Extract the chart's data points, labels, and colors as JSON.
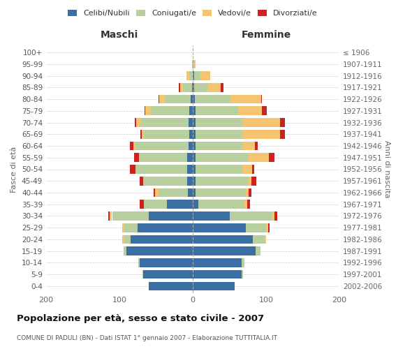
{
  "age_groups": [
    "100+",
    "95-99",
    "90-94",
    "85-89",
    "80-84",
    "75-79",
    "70-74",
    "65-69",
    "60-64",
    "55-59",
    "50-54",
    "45-49",
    "40-44",
    "35-39",
    "30-34",
    "25-29",
    "20-24",
    "15-19",
    "10-14",
    "5-9",
    "0-4"
  ],
  "birth_years": [
    "≤ 1906",
    "1907-1911",
    "1912-1916",
    "1917-1921",
    "1922-1926",
    "1927-1931",
    "1932-1936",
    "1937-1941",
    "1942-1946",
    "1947-1951",
    "1952-1956",
    "1957-1961",
    "1962-1966",
    "1967-1971",
    "1972-1976",
    "1977-1981",
    "1982-1986",
    "1987-1991",
    "1992-1996",
    "1997-2001",
    "2002-2006"
  ],
  "male": {
    "celibi": [
      0,
      0,
      0,
      1,
      3,
      5,
      6,
      5,
      6,
      8,
      8,
      8,
      7,
      35,
      60,
      75,
      85,
      90,
      72,
      68,
      60
    ],
    "coniugati": [
      0,
      1,
      5,
      12,
      35,
      52,
      65,
      62,
      72,
      65,
      70,
      60,
      40,
      32,
      50,
      18,
      8,
      4,
      2,
      1,
      0
    ],
    "vedovi": [
      0,
      0,
      4,
      4,
      8,
      8,
      6,
      3,
      3,
      0,
      0,
      0,
      4,
      0,
      3,
      3,
      3,
      0,
      0,
      0,
      0
    ],
    "divorziati": [
      0,
      0,
      0,
      2,
      1,
      1,
      2,
      1,
      5,
      7,
      8,
      4,
      2,
      5,
      2,
      0,
      0,
      0,
      0,
      0,
      0
    ]
  },
  "female": {
    "nubili": [
      0,
      0,
      2,
      2,
      3,
      4,
      4,
      4,
      4,
      4,
      4,
      4,
      4,
      8,
      50,
      72,
      82,
      86,
      67,
      67,
      57
    ],
    "coniugate": [
      0,
      2,
      8,
      18,
      48,
      58,
      65,
      65,
      65,
      72,
      65,
      72,
      68,
      62,
      58,
      28,
      16,
      6,
      3,
      2,
      0
    ],
    "vedove": [
      0,
      2,
      14,
      18,
      42,
      32,
      50,
      50,
      16,
      28,
      12,
      4,
      4,
      4,
      3,
      3,
      2,
      0,
      0,
      0,
      0
    ],
    "divorziate": [
      0,
      0,
      0,
      4,
      1,
      7,
      7,
      7,
      4,
      7,
      3,
      7,
      4,
      4,
      4,
      2,
      0,
      0,
      0,
      0,
      0
    ]
  },
  "colors": {
    "celibi_nubili": "#3a6ea5",
    "coniugati": "#b8cfa0",
    "vedovi": "#f5c471",
    "divorziati": "#cc2222"
  },
  "title": "Popolazione per età, sesso e stato civile - 2007",
  "subtitle": "COMUNE DI PADULI (BN) - Dati ISTAT 1° gennaio 2007 - Elaborazione TUTTITALIA.IT",
  "xlabel_left": "Maschi",
  "xlabel_right": "Femmine",
  "ylabel_left": "Fasce di età",
  "ylabel_right": "Anni di nascita",
  "xlim": 200,
  "background_color": "#ffffff",
  "grid_color": "#cccccc"
}
